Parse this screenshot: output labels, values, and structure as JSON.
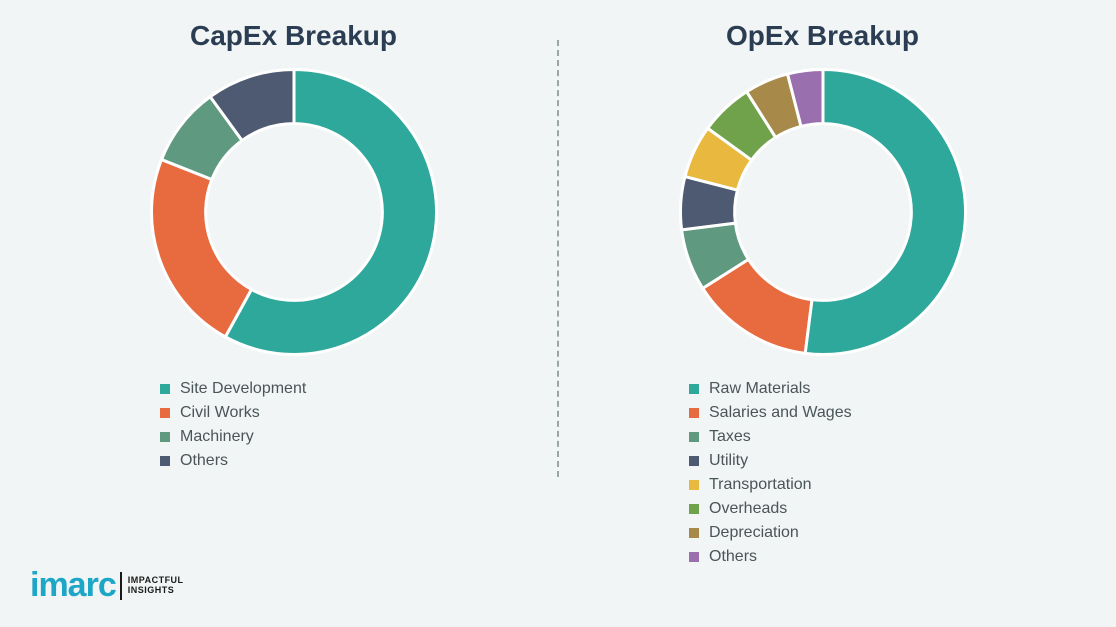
{
  "logo": {
    "mark": "imarc",
    "tagline_l1": "IMPACTFUL",
    "tagline_l2": "INSIGHTS"
  },
  "capex": {
    "title": "CapEx Breakup",
    "type": "donut",
    "inner_radius_pct": 62,
    "background_color": "#f2f5f5",
    "title_fontsize": 28,
    "title_color": "#2b3d52",
    "legend_fontsize": 16,
    "legend_color": "#4a5558",
    "stroke_color": "#ffffff",
    "stroke_width": 2,
    "slices": [
      {
        "label": "Site Development",
        "value": 58,
        "color": "#2ea89a"
      },
      {
        "label": "Civil Works",
        "value": 23,
        "color": "#e86a3f"
      },
      {
        "label": "Machinery",
        "value": 9,
        "color": "#5f9a80"
      },
      {
        "label": "Others",
        "value": 10,
        "color": "#4e5a72"
      }
    ]
  },
  "opex": {
    "title": "OpEx Breakup",
    "type": "donut",
    "inner_radius_pct": 62,
    "background_color": "#f2f5f5",
    "title_fontsize": 28,
    "title_color": "#2b3d52",
    "legend_fontsize": 16,
    "legend_color": "#4a5558",
    "stroke_color": "#ffffff",
    "stroke_width": 2,
    "slices": [
      {
        "label": "Raw Materials",
        "value": 52,
        "color": "#2ea89a"
      },
      {
        "label": "Salaries and Wages",
        "value": 14,
        "color": "#e86a3f"
      },
      {
        "label": "Taxes",
        "value": 7,
        "color": "#5f9a80"
      },
      {
        "label": "Utility",
        "value": 6,
        "color": "#4e5a72"
      },
      {
        "label": "Transportation",
        "value": 6,
        "color": "#e8b83f"
      },
      {
        "label": "Overheads",
        "value": 6,
        "color": "#6fa24a"
      },
      {
        "label": "Depreciation",
        "value": 5,
        "color": "#a78a4a"
      },
      {
        "label": "Others",
        "value": 4,
        "color": "#9a6fae"
      }
    ]
  }
}
